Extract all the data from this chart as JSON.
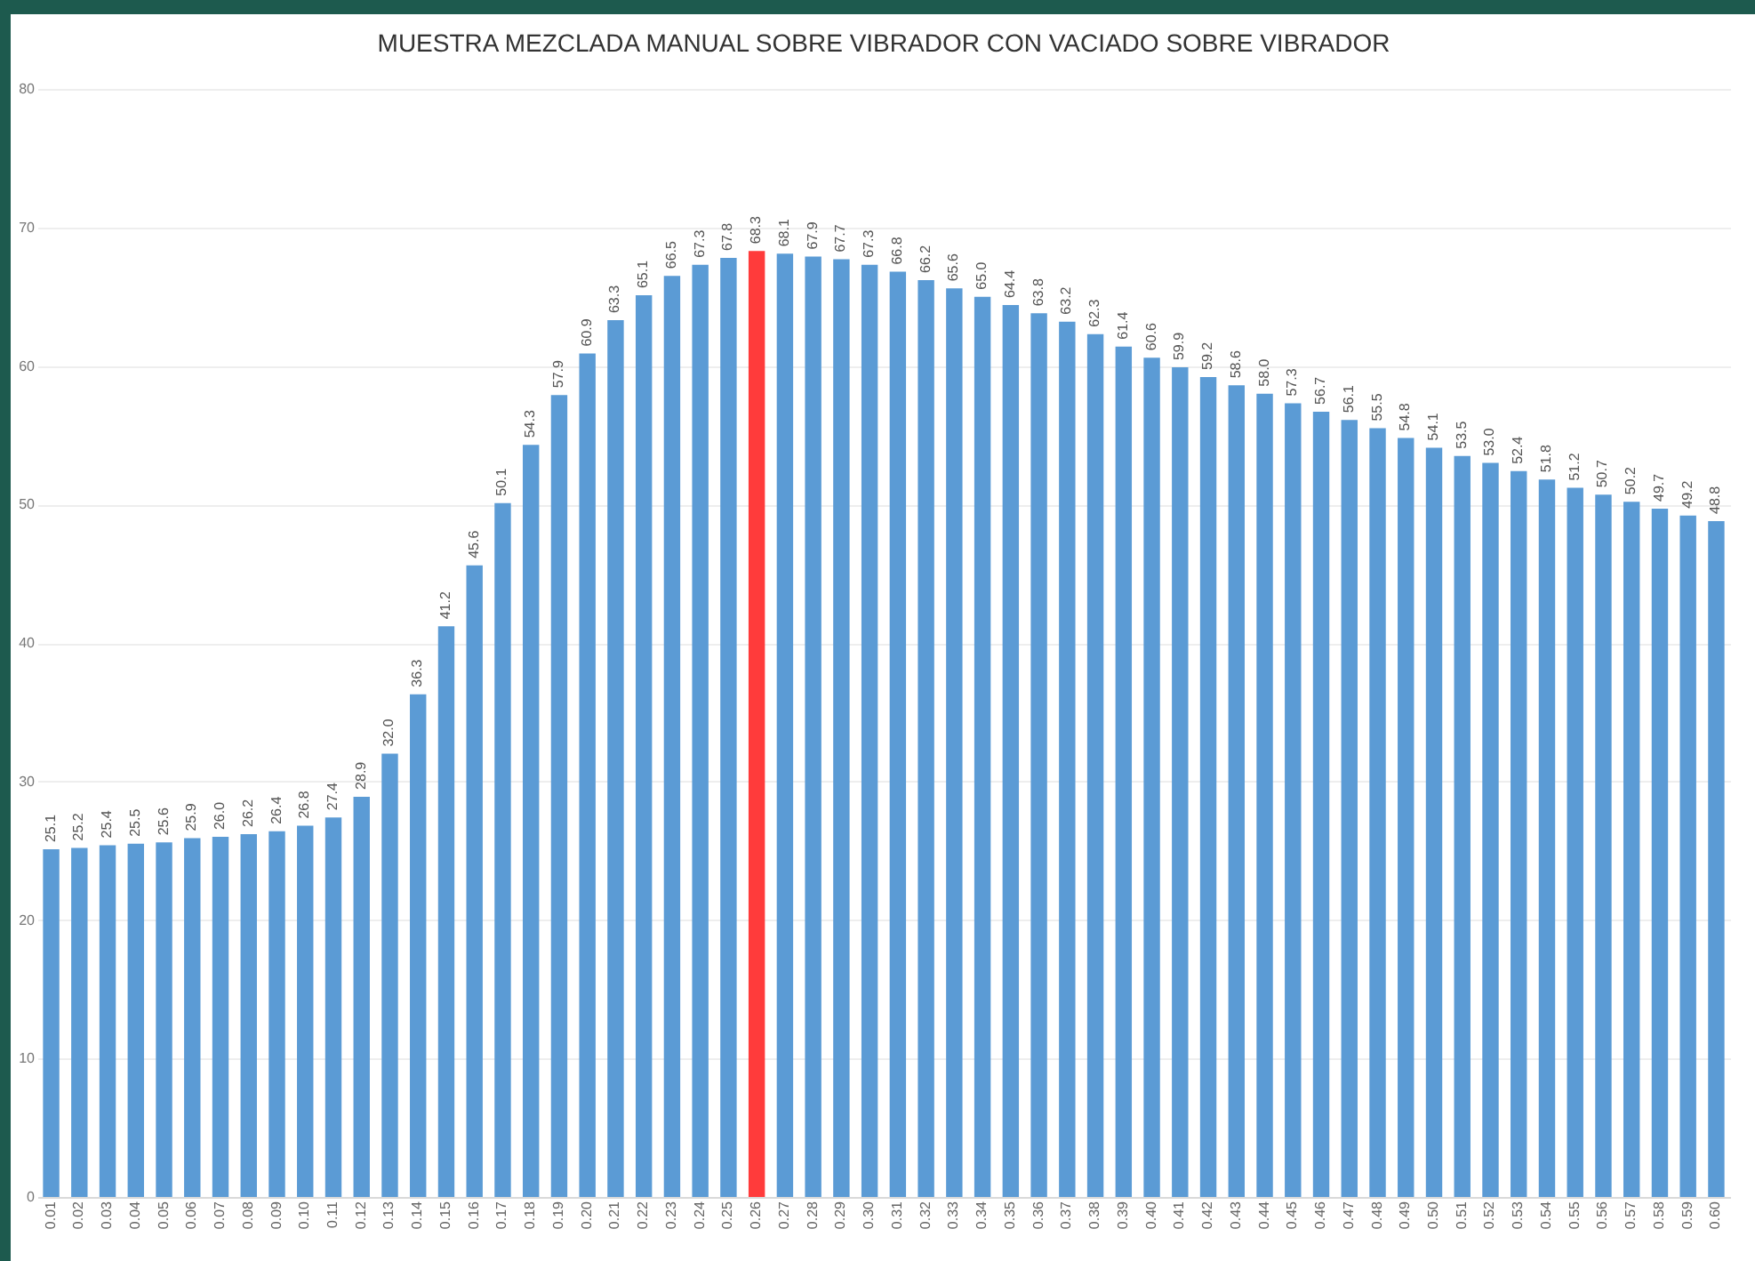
{
  "chart_data": {
    "type": "bar",
    "title": "MUESTRA MEZCLADA MANUAL SOBRE VIBRADOR CON VACIADO SOBRE VIBRADOR",
    "categories": [
      "0.01",
      "0.02",
      "0.03",
      "0.04",
      "0.05",
      "0.06",
      "0.07",
      "0.08",
      "0.09",
      "0.10",
      "0.11",
      "0.12",
      "0.13",
      "0.14",
      "0.15",
      "0.16",
      "0.17",
      "0.18",
      "0.19",
      "0.20",
      "0.21",
      "0.22",
      "0.23",
      "0.24",
      "0.25",
      "0.26",
      "0.27",
      "0.28",
      "0.29",
      "0.30",
      "0.31",
      "0.32",
      "0.33",
      "0.34",
      "0.35",
      "0.36",
      "0.37",
      "0.38",
      "0.39",
      "0.40",
      "0.41",
      "0.42",
      "0.43",
      "0.44",
      "0.45",
      "0.46",
      "0.47",
      "0.48",
      "0.49",
      "0.50",
      "0.51",
      "0.52",
      "0.53",
      "0.54",
      "0.55",
      "0.56",
      "0.57",
      "0.58",
      "0.59",
      "0.60"
    ],
    "values": [
      25.1,
      25.2,
      25.4,
      25.5,
      25.6,
      25.9,
      26.0,
      26.2,
      26.4,
      26.8,
      27.4,
      28.9,
      32.0,
      36.3,
      41.2,
      45.6,
      50.1,
      54.3,
      57.9,
      60.9,
      63.3,
      65.1,
      66.5,
      67.3,
      67.8,
      68.3,
      68.1,
      67.9,
      67.7,
      67.3,
      66.8,
      66.2,
      65.6,
      65.0,
      64.4,
      63.8,
      63.2,
      62.3,
      61.4,
      60.6,
      59.9,
      59.2,
      58.6,
      58.0,
      57.3,
      56.7,
      56.1,
      55.5,
      54.8,
      54.1,
      53.5,
      53.0,
      52.4,
      51.8,
      51.2,
      50.7,
      50.2,
      49.7,
      49.2,
      48.8
    ],
    "colors": [
      "#5b9bd5",
      "#5b9bd5",
      "#5b9bd5",
      "#5b9bd5",
      "#5b9bd5",
      "#5b9bd5",
      "#5b9bd5",
      "#5b9bd5",
      "#5b9bd5",
      "#5b9bd5",
      "#5b9bd5",
      "#5b9bd5",
      "#5b9bd5",
      "#5b9bd5",
      "#5b9bd5",
      "#5b9bd5",
      "#5b9bd5",
      "#5b9bd5",
      "#5b9bd5",
      "#5b9bd5",
      "#5b9bd5",
      "#5b9bd5",
      "#5b9bd5",
      "#5b9bd5",
      "#5b9bd5",
      "#ff3b3b",
      "#5b9bd5",
      "#5b9bd5",
      "#5b9bd5",
      "#5b9bd5",
      "#5b9bd5",
      "#5b9bd5",
      "#5b9bd5",
      "#5b9bd5",
      "#5b9bd5",
      "#5b9bd5",
      "#5b9bd5",
      "#5b9bd5",
      "#5b9bd5",
      "#5b9bd5",
      "#5b9bd5",
      "#5b9bd5",
      "#5b9bd5",
      "#5b9bd5",
      "#5b9bd5",
      "#5b9bd5",
      "#5b9bd5",
      "#5b9bd5",
      "#5b9bd5",
      "#5b9bd5",
      "#5b9bd5",
      "#5b9bd5",
      "#5b9bd5",
      "#5b9bd5",
      "#5b9bd5",
      "#5b9bd5",
      "#5b9bd5",
      "#5b9bd5",
      "#5b9bd5",
      "#5b9bd5"
    ],
    "value_labels": [
      "25.1",
      "25.2",
      "25.4",
      "25.5",
      "25.6",
      "25.9",
      "26.0",
      "26.2",
      "26.4",
      "26.8",
      "27.4",
      "28.9",
      "32.0",
      "36.3",
      "41.2",
      "45.6",
      "50.1",
      "54.3",
      "57.9",
      "60.9",
      "63.3",
      "65.1",
      "66.5",
      "67.3",
      "67.8",
      "68.3",
      "68.1",
      "67.9",
      "67.7",
      "67.3",
      "66.8",
      "66.2",
      "65.6",
      "65.0",
      "64.4",
      "63.8",
      "63.2",
      "62.3",
      "61.4",
      "60.6",
      "59.9",
      "59.2",
      "58.6",
      "58.0",
      "57.3",
      "56.7",
      "56.1",
      "55.5",
      "54.8",
      "54.1",
      "53.5",
      "53.0",
      "52.4",
      "51.8",
      "51.2",
      "50.7",
      "50.2",
      "49.7",
      "49.2",
      "48.8"
    ],
    "ylim": [
      0,
      80
    ],
    "yticks": [
      0,
      10,
      20,
      30,
      40,
      50,
      60,
      70,
      80
    ],
    "grid": "y"
  }
}
